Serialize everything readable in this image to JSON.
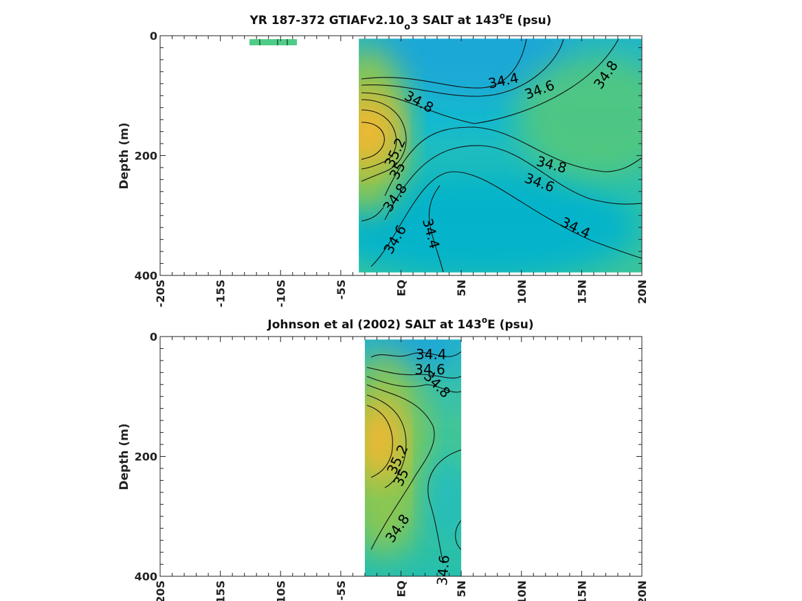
{
  "chart_data": [
    {
      "type": "heatmap",
      "title_parts": [
        "YR 187-372 GTIAFv2.10",
        "o",
        "3 SALT at 143",
        "o",
        "E (psu)"
      ],
      "xlabel": "",
      "ylabel": "Depth (m)",
      "x_tick_labels": [
        "-20S",
        "-15S",
        "-10S",
        "-5S",
        "EQ",
        "5N",
        "10N",
        "15N",
        "20N"
      ],
      "x_tick_values": [
        -20,
        -15,
        -10,
        -5,
        0,
        5,
        10,
        15,
        20
      ],
      "y_tick_labels": [
        "0",
        "200",
        "400"
      ],
      "y_tick_values": [
        0,
        200,
        400
      ],
      "xlim": [
        -20,
        20
      ],
      "ylim": [
        400,
        0
      ],
      "data_extent_lat": [
        -3.5,
        20
      ],
      "data_extent_depth": [
        5,
        395
      ],
      "contour_levels": [
        34.4,
        34.6,
        34.8,
        35,
        35.2
      ],
      "contour_labels": [
        {
          "text": "34.4",
          "lat": 8.5,
          "depth": 75
        },
        {
          "text": "34.6",
          "lat": 11.5,
          "depth": 90
        },
        {
          "text": "34.8",
          "lat": 17.0,
          "depth": 65
        },
        {
          "text": "34.8",
          "lat": 1.5,
          "depth": 110
        },
        {
          "text": "35.2",
          "lat": -0.5,
          "depth": 195
        },
        {
          "text": "35",
          "lat": -0.3,
          "depth": 225
        },
        {
          "text": "34.8",
          "lat": -0.5,
          "depth": 270
        },
        {
          "text": "34.6",
          "lat": -0.5,
          "depth": 340
        },
        {
          "text": "34.4",
          "lat": 2.5,
          "depth": 330
        },
        {
          "text": "34.8",
          "lat": 12.5,
          "depth": 215
        },
        {
          "text": "34.6",
          "lat": 11.5,
          "depth": 245
        },
        {
          "text": "34.4",
          "lat": 14.5,
          "depth": 320
        }
      ],
      "salinity_features": [
        {
          "feature": "max",
          "lat": -3.0,
          "depth": 160,
          "value": 35.35
        },
        {
          "feature": "surface fresh",
          "lat": 8.0,
          "depth": 30,
          "value": 34.3
        },
        {
          "feature": "subsurface fresh",
          "lat": 10.0,
          "depth": 330,
          "value": 34.35
        },
        {
          "feature": "north high",
          "lat": 18.0,
          "depth": 150,
          "value": 34.9
        }
      ]
    },
    {
      "type": "heatmap",
      "title_parts": [
        "Johnson et al (2002) SALT at 143",
        "o",
        "E (psu)"
      ],
      "xlabel": "",
      "ylabel": "Depth (m)",
      "x_tick_labels": [
        "-20S",
        "-15S",
        "-10S",
        "-5S",
        "EQ",
        "5N",
        "10N",
        "15N",
        "20N"
      ],
      "x_tick_values": [
        -20,
        -15,
        -10,
        -5,
        0,
        5,
        10,
        15,
        20
      ],
      "y_tick_labels": [
        "0",
        "200",
        "400"
      ],
      "y_tick_values": [
        0,
        200,
        400
      ],
      "xlim": [
        -20,
        20
      ],
      "ylim": [
        400,
        0
      ],
      "data_extent_lat": [
        -3,
        5
      ],
      "data_extent_depth": [
        5,
        400
      ],
      "contour_levels": [
        34.4,
        34.6,
        34.8,
        35,
        35.2
      ],
      "contour_labels": [
        {
          "text": "34.4",
          "lat": 2.5,
          "depth": 30
        },
        {
          "text": "34.6",
          "lat": 2.4,
          "depth": 55
        },
        {
          "text": "34.8",
          "lat": 3.0,
          "depth": 80
        },
        {
          "text": "35.2",
          "lat": -0.3,
          "depth": 205
        },
        {
          "text": "35",
          "lat": 0.0,
          "depth": 235
        },
        {
          "text": "34.8",
          "lat": -0.3,
          "depth": 320
        },
        {
          "text": "34.6",
          "lat": 3.5,
          "depth": 390
        }
      ],
      "salinity_features": [
        {
          "feature": "max",
          "lat": -2.0,
          "depth": 170,
          "value": 35.35
        },
        {
          "feature": "surface fresh",
          "lat": 2.0,
          "depth": 15,
          "value": 34.3
        }
      ]
    }
  ]
}
